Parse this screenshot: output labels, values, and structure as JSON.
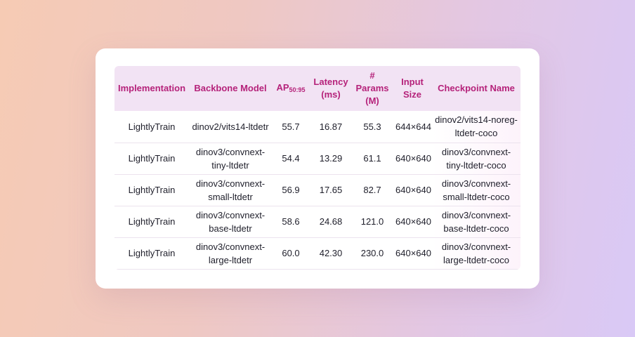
{
  "table": {
    "headers": {
      "implementation": "Implementation",
      "backbone": "Backbone Model",
      "ap": "AP",
      "ap_sub": "50:95",
      "latency": "Latency (ms)",
      "params": "# Params (M)",
      "input_size": "Input Size",
      "checkpoint": "Checkpoint Name"
    },
    "rows": [
      {
        "implementation": "LightlyTrain",
        "backbone": "dinov2/vits14-ltdetr",
        "ap": "55.7",
        "latency": "16.87",
        "params": "55.3",
        "input_size": "644×644",
        "checkpoint": "dinov2/vits14-noreg-ltdetr-coco"
      },
      {
        "implementation": "LightlyTrain",
        "backbone": "dinov3/convnext-tiny-ltdetr",
        "ap": "54.4",
        "latency": "13.29",
        "params": "61.1",
        "input_size": "640×640",
        "checkpoint": "dinov3/convnext-tiny-ltdetr-coco"
      },
      {
        "implementation": "LightlyTrain",
        "backbone": "dinov3/convnext-small-ltdetr",
        "ap": "56.9",
        "latency": "17.65",
        "params": "82.7",
        "input_size": "640×640",
        "checkpoint": "dinov3/convnext-small-ltdetr-coco"
      },
      {
        "implementation": "LightlyTrain",
        "backbone": "dinov3/convnext-base-ltdetr",
        "ap": "58.6",
        "latency": "24.68",
        "params": "121.0",
        "input_size": "640×640",
        "checkpoint": "dinov3/convnext-base-ltdetr-coco"
      },
      {
        "implementation": "LightlyTrain",
        "backbone": "dinov3/convnext-large-ltdetr",
        "ap": "60.0",
        "latency": "42.30",
        "params": "230.0",
        "input_size": "640×640",
        "checkpoint": "dinov3/convnext-large-ltdetr-coco"
      }
    ]
  }
}
